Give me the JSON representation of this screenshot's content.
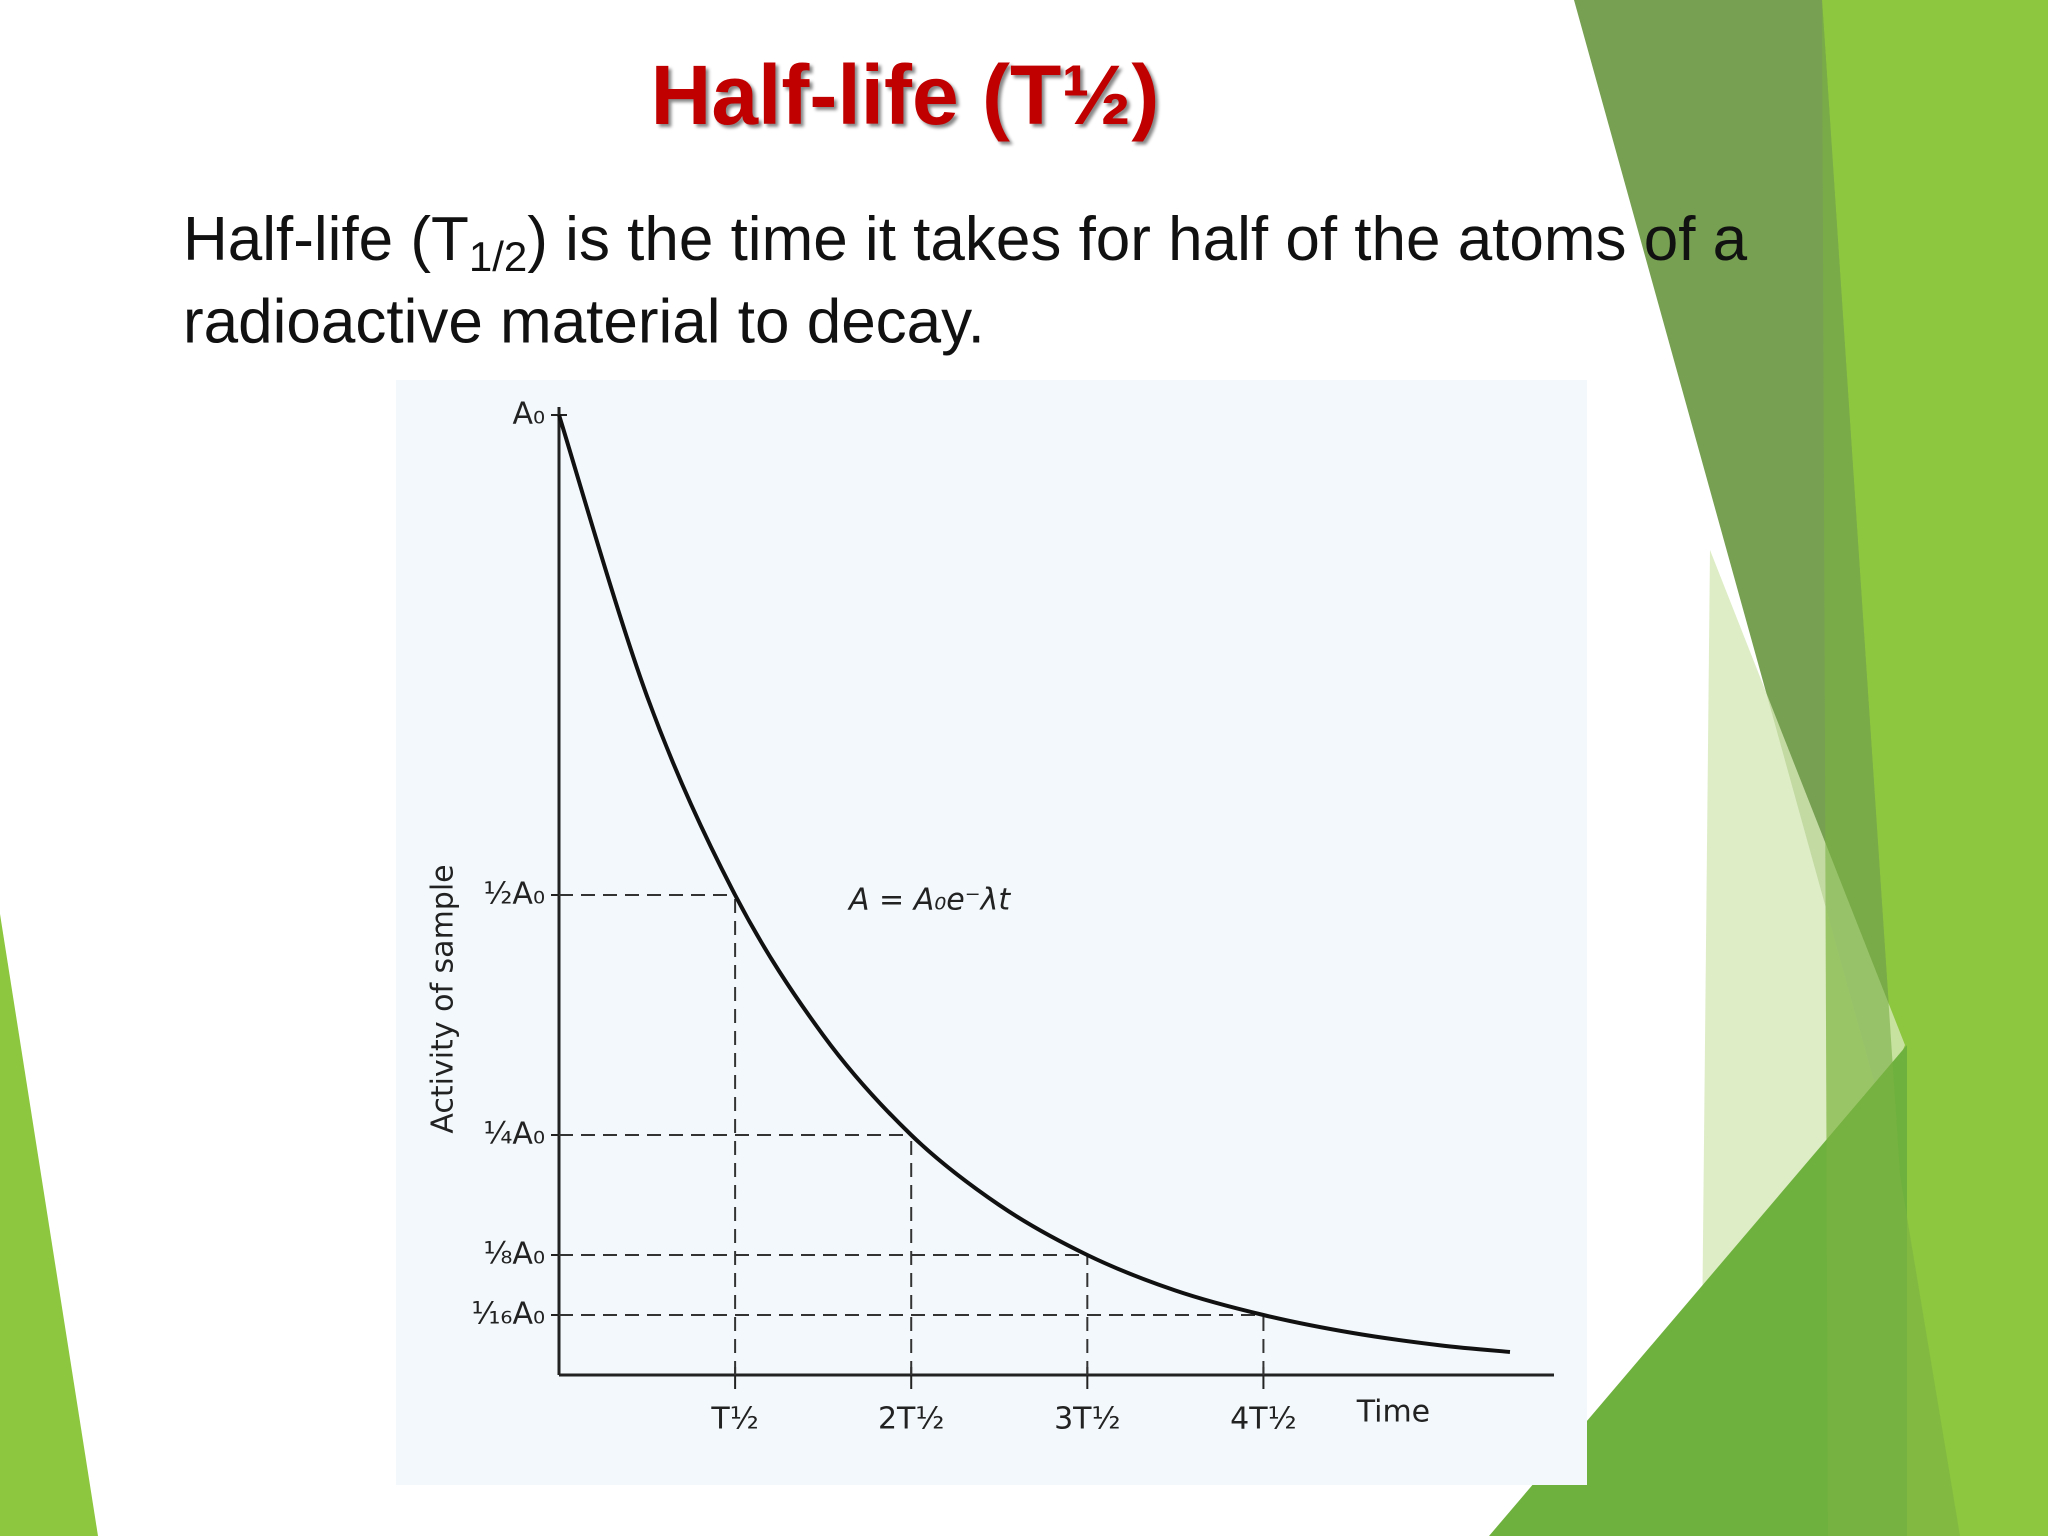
{
  "slide": {
    "title": "Half-life (T½)",
    "body": [
      "Half-life (T",
      "1/2",
      ") is the time it takes for half of the atoms of a",
      "radioactive material to decay."
    ]
  },
  "chart_data": {
    "type": "line",
    "x": [
      0,
      0.5,
      1,
      1.5,
      2,
      2.5,
      3,
      3.5,
      4,
      4.5,
      5,
      5.4
    ],
    "values": [
      1,
      0.707,
      0.5,
      0.354,
      0.25,
      0.177,
      0.125,
      0.088,
      0.0625,
      0.044,
      0.031,
      0.024
    ],
    "color": "#111111",
    "xlim": [
      0,
      5.65
    ],
    "ylim": [
      0,
      1
    ],
    "xticks": [
      {
        "value": 1,
        "label": "T½"
      },
      {
        "value": 2,
        "label": "2T½"
      },
      {
        "value": 3,
        "label": "3T½"
      },
      {
        "value": 4,
        "label": "4T½"
      }
    ],
    "yticks": [
      {
        "value": 1,
        "label": "A₀"
      },
      {
        "value": 0.5,
        "label": "½A₀"
      },
      {
        "value": 0.25,
        "label": "¼A₀"
      },
      {
        "value": 0.125,
        "label": "⅛A₀"
      },
      {
        "value": 0.0625,
        "label": "¹⁄₁₆A₀"
      }
    ],
    "xlabel": "Time",
    "ylabel": "Activity of sample",
    "annotation": "A = A₀e⁻λt"
  }
}
